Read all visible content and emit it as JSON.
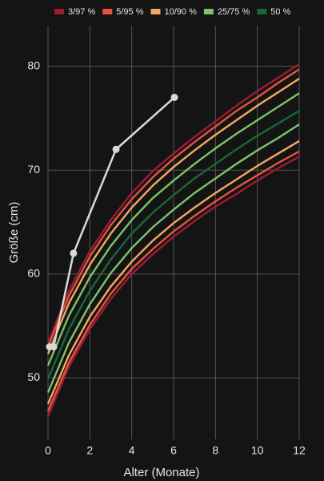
{
  "chart_data": {
    "type": "line",
    "x_label": "Alter (Monate)",
    "y_label": "Größe (cm)",
    "x": [
      0,
      1,
      2,
      3,
      4,
      5,
      6,
      7,
      8,
      9,
      10,
      11,
      12
    ],
    "xlim": [
      0,
      12
    ],
    "xticks": [
      0,
      2,
      4,
      6,
      8,
      10,
      12
    ],
    "ylim": [
      44.1,
      83.9
    ],
    "yticks": [
      50,
      60,
      70,
      80
    ],
    "grid": true,
    "legend": "top",
    "series": [
      {
        "name": "3/97 %",
        "color": "#9e1b34",
        "lines": [
          [
            46.3,
            51.1,
            54.7,
            57.6,
            60.0,
            61.9,
            63.6,
            65.1,
            66.5,
            67.7,
            69.0,
            70.2,
            71.3
          ],
          [
            53.4,
            58.4,
            62.2,
            65.2,
            67.8,
            69.9,
            71.6,
            73.2,
            74.7,
            76.2,
            77.6,
            78.9,
            80.2
          ]
        ]
      },
      {
        "name": "5/95 %",
        "color": "#e4543f",
        "lines": [
          [
            46.8,
            51.5,
            55.1,
            58.1,
            60.5,
            62.4,
            64.1,
            65.6,
            67.0,
            68.3,
            69.5,
            70.7,
            71.8
          ],
          [
            53.0,
            57.9,
            61.7,
            64.7,
            67.2,
            69.3,
            71.1,
            72.7,
            74.2,
            75.7,
            77.0,
            78.4,
            79.7
          ]
        ]
      },
      {
        "name": "10/90 %",
        "color": "#f5a862",
        "lines": [
          [
            47.5,
            52.2,
            55.9,
            58.8,
            61.2,
            63.2,
            64.9,
            66.4,
            67.8,
            69.1,
            70.4,
            71.6,
            72.8
          ],
          [
            52.3,
            57.2,
            60.9,
            63.9,
            66.4,
            68.5,
            70.3,
            71.9,
            73.4,
            74.8,
            76.2,
            77.5,
            78.8
          ]
        ]
      },
      {
        "name": "25/75 %",
        "color": "#7cc46c",
        "lines": [
          [
            48.6,
            53.4,
            57.1,
            60.1,
            62.5,
            64.5,
            66.2,
            67.8,
            69.2,
            70.6,
            71.9,
            73.1,
            74.4
          ],
          [
            51.2,
            56.0,
            59.7,
            62.7,
            65.2,
            67.3,
            69.0,
            70.6,
            72.1,
            73.5,
            74.8,
            76.1,
            77.4
          ]
        ]
      },
      {
        "name": "50 %",
        "color": "#17693a",
        "lines": [
          [
            49.9,
            54.7,
            58.4,
            61.4,
            63.9,
            65.9,
            67.6,
            69.2,
            70.6,
            72.0,
            73.3,
            74.5,
            75.7
          ]
        ]
      }
    ],
    "measurements": {
      "color": "#d9d9d9",
      "x": [
        0.08,
        0.27,
        1.22,
        3.25,
        6.04
      ],
      "values": [
        53.0,
        53.0,
        62.0,
        72.0,
        77.0
      ]
    }
  }
}
